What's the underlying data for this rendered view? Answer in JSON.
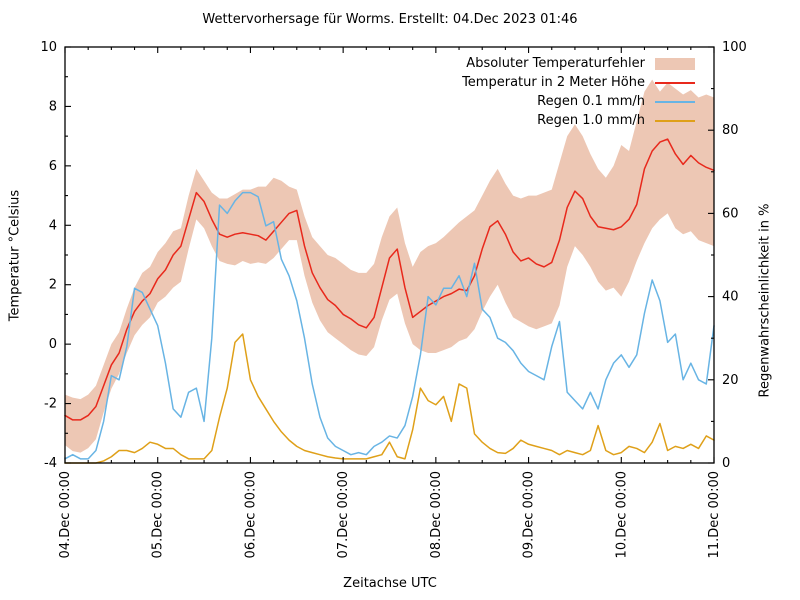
{
  "title": "Wettervorhersage für Worms. Erstellt: 04.Dec 2023 01:46",
  "legend": {
    "items": [
      {
        "label": "Absoluter Temperaturfehler",
        "type": "band",
        "color": "#edc7b4"
      },
      {
        "label": "Temperatur in 2 Meter Höhe",
        "type": "line",
        "color": "#e8291c"
      },
      {
        "label": "Regen 0.1 mm/h",
        "type": "line",
        "color": "#68b4e4"
      },
      {
        "label": "Regen 1.0 mm/h",
        "type": "line",
        "color": "#dfa019"
      }
    ]
  },
  "axes": {
    "x": {
      "label": "Zeitachse UTC",
      "tick_labels": [
        "04.Dec 00:00",
        "05.Dec 00:00",
        "06.Dec 00:00",
        "07.Dec 00:00",
        "08.Dec 00:00",
        "09.Dec 00:00",
        "10.Dec 00:00",
        "11.Dec 00:00"
      ],
      "hours_per_major_tick": 24,
      "hours_per_minor_tick": 6
    },
    "y_left": {
      "label": "Temperatur °Celsius",
      "min": -4,
      "max": 10,
      "major_step": 2,
      "minor_step": 1
    },
    "y_right": {
      "label": "Regenwahrscheinlichkeit in %",
      "min": 0,
      "max": 100,
      "major_step": 20,
      "minor_step": 10
    }
  },
  "chart_data": {
    "type": "line",
    "title": "Wettervorhersage für Worms. Erstellt: 04.Dec 2023 01:46",
    "xlabel": "Zeitachse UTC",
    "x_unit": "hours since 04.Dec 00:00 UTC",
    "x_step_hours": 2,
    "x_max_hours": 168,
    "y_left_range": [
      -4,
      10
    ],
    "y_right_range": [
      0,
      100
    ],
    "grid": false,
    "legend_position": "top-right-inside",
    "series": [
      {
        "name": "Absoluter Temperaturfehler",
        "axis": "left",
        "style": "band",
        "color": "#edc7b4",
        "upper": [
          -1.7,
          -1.8,
          -1.85,
          -1.7,
          -1.4,
          -0.7,
          0.0,
          0.4,
          1.2,
          1.9,
          2.4,
          2.6,
          3.1,
          3.4,
          3.8,
          3.9,
          5.0,
          5.9,
          5.5,
          5.1,
          4.9,
          4.9,
          5.05,
          5.2,
          5.2,
          5.3,
          5.3,
          5.6,
          5.5,
          5.3,
          5.2,
          4.3,
          3.6,
          3.3,
          3.0,
          2.9,
          2.7,
          2.5,
          2.4,
          2.4,
          2.7,
          3.6,
          4.3,
          4.6,
          3.4,
          2.6,
          3.1,
          3.3,
          3.4,
          3.6,
          3.85,
          4.1,
          4.3,
          4.5,
          5.0,
          5.5,
          5.9,
          5.4,
          5.0,
          4.9,
          5.0,
          5.0,
          5.1,
          5.2,
          6.1,
          7.0,
          7.4,
          7.0,
          6.4,
          5.9,
          5.6,
          6.0,
          6.7,
          6.5,
          7.5,
          8.5,
          8.9,
          8.5,
          8.8,
          8.6,
          8.4,
          8.55,
          8.3,
          8.4,
          8.3
        ],
        "lower": [
          -3.4,
          -3.6,
          -3.65,
          -3.5,
          -3.2,
          -2.3,
          -1.5,
          -1.0,
          -0.3,
          0.3,
          0.65,
          0.9,
          1.4,
          1.6,
          1.9,
          2.1,
          3.2,
          4.2,
          3.9,
          3.3,
          2.8,
          2.7,
          2.65,
          2.8,
          2.7,
          2.75,
          2.7,
          2.9,
          3.2,
          3.5,
          3.5,
          2.3,
          1.4,
          0.8,
          0.4,
          0.2,
          0.0,
          -0.2,
          -0.35,
          -0.4,
          -0.1,
          0.8,
          1.5,
          1.7,
          0.7,
          0.0,
          -0.2,
          -0.3,
          -0.3,
          -0.2,
          -0.1,
          0.1,
          0.2,
          0.5,
          1.1,
          1.6,
          2.0,
          1.4,
          0.9,
          0.75,
          0.6,
          0.5,
          0.6,
          0.7,
          1.3,
          2.6,
          3.3,
          3.0,
          2.6,
          2.1,
          1.8,
          1.9,
          1.6,
          2.1,
          2.8,
          3.4,
          3.9,
          4.2,
          4.4,
          3.9,
          3.7,
          3.8,
          3.5,
          3.4,
          3.3
        ]
      },
      {
        "name": "Temperatur in 2 Meter Höhe",
        "axis": "left",
        "style": "line",
        "color": "#e8291c",
        "values": [
          -2.4,
          -2.55,
          -2.55,
          -2.4,
          -2.1,
          -1.4,
          -0.7,
          -0.3,
          0.5,
          1.1,
          1.45,
          1.7,
          2.2,
          2.5,
          3.0,
          3.3,
          4.2,
          5.1,
          4.8,
          4.2,
          3.7,
          3.6,
          3.7,
          3.75,
          3.7,
          3.65,
          3.5,
          3.8,
          4.1,
          4.4,
          4.5,
          3.3,
          2.4,
          1.9,
          1.5,
          1.3,
          1.0,
          0.85,
          0.65,
          0.55,
          0.9,
          1.9,
          2.9,
          3.2,
          1.9,
          0.9,
          1.1,
          1.3,
          1.45,
          1.6,
          1.7,
          1.85,
          1.8,
          2.3,
          3.2,
          3.95,
          4.15,
          3.7,
          3.1,
          2.8,
          2.9,
          2.7,
          2.6,
          2.75,
          3.5,
          4.6,
          5.15,
          4.9,
          4.3,
          3.95,
          3.9,
          3.85,
          3.95,
          4.2,
          4.7,
          5.9,
          6.5,
          6.8,
          6.9,
          6.4,
          6.05,
          6.35,
          6.1,
          5.95,
          5.85
        ]
      },
      {
        "name": "Regen 0.1 mm/h",
        "axis": "right",
        "style": "line",
        "color": "#68b4e4",
        "values": [
          1,
          2,
          1,
          1,
          3,
          10,
          21,
          20,
          28,
          42,
          41,
          37,
          33,
          24,
          13,
          11,
          17,
          18,
          10,
          30,
          62,
          60,
          63,
          65,
          65,
          64,
          57,
          58,
          49,
          45,
          39,
          30,
          19,
          11,
          6,
          4,
          3,
          2,
          2.5,
          2,
          4,
          5,
          6.5,
          6,
          9,
          16,
          26,
          40,
          38,
          42,
          42,
          45,
          40,
          48,
          37,
          35,
          30,
          29,
          27,
          24,
          22,
          21,
          20,
          28,
          34,
          17,
          15,
          13,
          17,
          13,
          20,
          24,
          26,
          23,
          26,
          36,
          44,
          39,
          29,
          31,
          20,
          24,
          20,
          19,
          33
        ]
      },
      {
        "name": "Regen 1.0 mm/h",
        "axis": "right",
        "style": "line",
        "color": "#dfa019",
        "values": [
          0,
          0,
          0,
          0,
          0,
          0.5,
          1.5,
          3,
          3,
          2.5,
          3.5,
          5,
          4.5,
          3.5,
          3.5,
          2,
          1,
          1,
          1,
          3,
          11,
          18,
          29,
          31,
          20,
          16,
          13,
          10,
          7.5,
          5.5,
          4,
          3,
          2.5,
          2,
          1.5,
          1.2,
          1,
          1,
          1,
          1,
          1.5,
          2,
          5,
          1.5,
          1,
          8,
          18,
          15,
          14,
          16,
          10,
          19,
          18,
          7,
          5,
          3.5,
          2.5,
          2.3,
          3.5,
          5.5,
          4.5,
          4,
          3.5,
          3,
          2,
          3,
          2.5,
          2,
          3,
          9,
          3,
          2,
          2.5,
          4,
          3.5,
          2.5,
          5,
          9.5,
          3,
          4,
          3.5,
          4.5,
          3.5,
          6.5,
          5.5
        ]
      }
    ]
  }
}
